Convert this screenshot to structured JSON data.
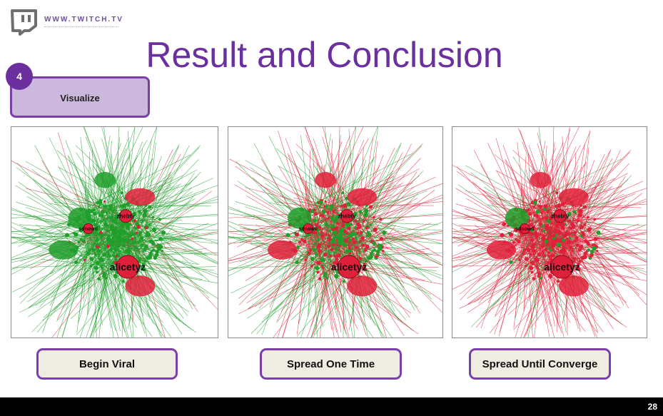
{
  "header": {
    "logo_text": "WWW.TWITCH.TV",
    "logo_icon": "twitch-glitch-icon",
    "title": "Result and Conclusion"
  },
  "step": {
    "number": "4",
    "label": "Visualize"
  },
  "panels": [
    {
      "caption": "Begin Viral",
      "labels": {
        "big": "alicetyz",
        "mid": "zhebty",
        "small": "sdnowtl"
      },
      "infected_share": 0.05
    },
    {
      "caption": "Spread One Time",
      "labels": {
        "big": "alicetyz",
        "mid": "zhebty",
        "small": "sdnowtl"
      },
      "infected_share": 0.5
    },
    {
      "caption": "Spread Until Converge",
      "labels": {
        "big": "alicetyz",
        "mid": "zhebty",
        "small": "sdnowtl"
      },
      "infected_share": 0.85
    }
  ],
  "colors": {
    "accent": "#6b2fa0",
    "healthy": "#1f9e2a",
    "infected": "#e0203a"
  },
  "footer": {
    "page_number": "28"
  }
}
